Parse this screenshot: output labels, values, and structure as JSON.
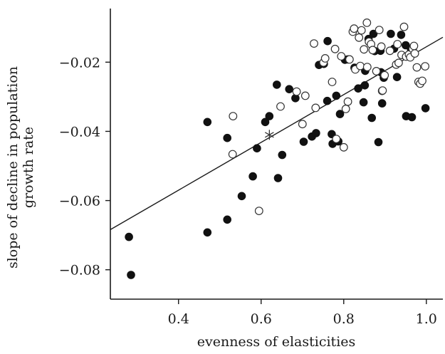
{
  "chart_data": {
    "type": "scatter",
    "title": "",
    "xlabel": "evenness of elasticities",
    "ylabel_lines": [
      "slope of decline in population",
      "growth rate"
    ],
    "xlim": [
      0.235,
      1.04
    ],
    "ylim": [
      -0.0885,
      -0.0045
    ],
    "xticks": [
      0.4,
      0.6,
      0.8,
      1.0
    ],
    "xtick_labels": [
      "0.4",
      "0.6",
      "0.8",
      "1.0"
    ],
    "yticks": [
      -0.02,
      -0.04,
      -0.06,
      -0.08
    ],
    "ytick_labels": [
      "−0.02",
      "−0.04",
      "−0.06",
      "−0.08"
    ],
    "grid": false,
    "legend": "none",
    "fit_line": {
      "x": [
        0.235,
        1.04
      ],
      "y": [
        -0.0684,
        -0.0128
      ]
    },
    "marker_star": {
      "x": 0.62,
      "y": -0.041
    },
    "series": [
      {
        "marker": "filled-circle",
        "points": [
          [
            0.28,
            -0.0705
          ],
          [
            0.285,
            -0.0815
          ],
          [
            0.47,
            -0.0373
          ],
          [
            0.47,
            -0.0692
          ],
          [
            0.518,
            -0.0419
          ],
          [
            0.518,
            -0.0655
          ],
          [
            0.553,
            -0.0587
          ],
          [
            0.58,
            -0.053
          ],
          [
            0.59,
            -0.0449
          ],
          [
            0.61,
            -0.0373
          ],
          [
            0.62,
            -0.0356
          ],
          [
            0.638,
            -0.0265
          ],
          [
            0.641,
            -0.0535
          ],
          [
            0.651,
            -0.0468
          ],
          [
            0.668,
            -0.0278
          ],
          [
            0.683,
            -0.0304
          ],
          [
            0.703,
            -0.043
          ],
          [
            0.723,
            -0.0415
          ],
          [
            0.733,
            -0.0405
          ],
          [
            0.74,
            -0.0208
          ],
          [
            0.752,
            -0.0205
          ],
          [
            0.76,
            -0.0312
          ],
          [
            0.761,
            -0.0139
          ],
          [
            0.771,
            -0.0408
          ],
          [
            0.773,
            -0.0436
          ],
          [
            0.782,
            -0.0297
          ],
          [
            0.787,
            -0.0429
          ],
          [
            0.791,
            -0.035
          ],
          [
            0.803,
            -0.0193
          ],
          [
            0.81,
            -0.0192
          ],
          [
            0.826,
            -0.0216
          ],
          [
            0.835,
            -0.0276
          ],
          [
            0.848,
            -0.0316
          ],
          [
            0.851,
            -0.0267
          ],
          [
            0.852,
            -0.0225
          ],
          [
            0.86,
            -0.0133
          ],
          [
            0.868,
            -0.0361
          ],
          [
            0.872,
            -0.0118
          ],
          [
            0.875,
            -0.0168
          ],
          [
            0.884,
            -0.0431
          ],
          [
            0.889,
            -0.0167
          ],
          [
            0.89,
            -0.0229
          ],
          [
            0.893,
            -0.0319
          ],
          [
            0.897,
            -0.0245
          ],
          [
            0.914,
            -0.0118
          ],
          [
            0.922,
            -0.0161
          ],
          [
            0.929,
            -0.0243
          ],
          [
            0.939,
            -0.0121
          ],
          [
            0.95,
            -0.0151
          ],
          [
            0.951,
            -0.0356
          ],
          [
            0.963,
            -0.0163
          ],
          [
            0.965,
            -0.0359
          ],
          [
            0.998,
            -0.0333
          ]
        ]
      },
      {
        "marker": "open-circle",
        "points": [
          [
            0.532,
            -0.0356
          ],
          [
            0.531,
            -0.0466
          ],
          [
            0.595,
            -0.063
          ],
          [
            0.647,
            -0.0328
          ],
          [
            0.686,
            -0.0285
          ],
          [
            0.7,
            -0.0379
          ],
          [
            0.707,
            -0.0297
          ],
          [
            0.732,
            -0.0332
          ],
          [
            0.728,
            -0.0146
          ],
          [
            0.751,
            -0.0201
          ],
          [
            0.755,
            -0.0189
          ],
          [
            0.772,
            -0.0257
          ],
          [
            0.779,
            -0.0162
          ],
          [
            0.782,
            -0.0422
          ],
          [
            0.794,
            -0.0183
          ],
          [
            0.8,
            -0.0446
          ],
          [
            0.805,
            -0.0335
          ],
          [
            0.81,
            -0.0314
          ],
          [
            0.814,
            -0.0192
          ],
          [
            0.822,
            -0.0112
          ],
          [
            0.825,
            -0.0103
          ],
          [
            0.828,
            -0.0221
          ],
          [
            0.837,
            -0.0129
          ],
          [
            0.84,
            -0.0211
          ],
          [
            0.843,
            -0.0108
          ],
          [
            0.849,
            -0.0163
          ],
          [
            0.856,
            -0.0086
          ],
          [
            0.857,
            -0.0214
          ],
          [
            0.861,
            -0.0141
          ],
          [
            0.866,
            -0.0148
          ],
          [
            0.87,
            -0.0165
          ],
          [
            0.879,
            -0.0226
          ],
          [
            0.886,
            -0.0107
          ],
          [
            0.891,
            -0.0155
          ],
          [
            0.893,
            -0.0283
          ],
          [
            0.894,
            -0.0282
          ],
          [
            0.899,
            -0.0238
          ],
          [
            0.912,
            -0.0167
          ],
          [
            0.927,
            -0.0207
          ],
          [
            0.93,
            -0.0148
          ],
          [
            0.933,
            -0.0202
          ],
          [
            0.94,
            -0.0179
          ],
          [
            0.946,
            -0.0098
          ],
          [
            0.951,
            -0.0184
          ],
          [
            0.958,
            -0.0178
          ],
          [
            0.961,
            -0.0186
          ],
          [
            0.967,
            -0.0162
          ],
          [
            0.97,
            -0.0153
          ],
          [
            0.972,
            -0.0175
          ],
          [
            0.977,
            -0.0215
          ],
          [
            0.981,
            -0.0257
          ],
          [
            0.985,
            -0.0262
          ],
          [
            0.99,
            -0.0254
          ],
          [
            0.997,
            -0.0212
          ]
        ]
      }
    ]
  }
}
